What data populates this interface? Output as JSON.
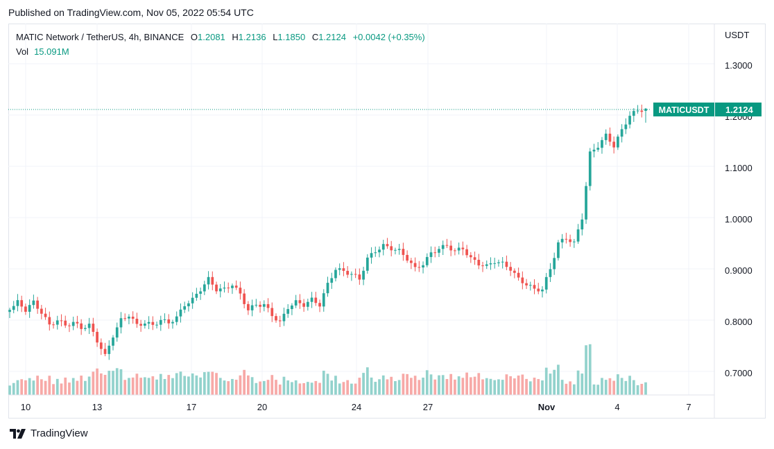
{
  "header": {
    "published": "Published on TradingView.com, Nov 05, 2022 05:54 UTC"
  },
  "legend": {
    "symbol": "MATIC Network / TetherUS, 4h, BINANCE",
    "o_label": "O",
    "o": "1.2081",
    "h_label": "H",
    "h": "1.2136",
    "l_label": "L",
    "l": "1.1850",
    "c_label": "C",
    "c": "1.2124",
    "change": "+0.0042 (+0.35%)",
    "vol_label": "Vol",
    "vol": "15.091M"
  },
  "price_scale": {
    "currency": "USDT",
    "ticks": [
      "1.3000",
      "1.2000",
      "1.1000",
      "1.0000",
      "0.9000",
      "0.8000",
      "0.7000"
    ]
  },
  "last_price": {
    "symbol": "MATICUSDT",
    "value": "1.2124"
  },
  "time_axis": {
    "ticks": [
      "10",
      "13",
      "17",
      "20",
      "24",
      "27",
      "Nov",
      "4",
      "7"
    ]
  },
  "footer": {
    "logo_text": "TradingView"
  },
  "colors": {
    "up": "#26a69a",
    "down": "#ef5350",
    "up_vol": "#92d2cc",
    "down_vol": "#f7a9a7",
    "grid": "#f0f3fa"
  },
  "chart_data": {
    "type": "candlestick",
    "timeframe": "4h",
    "ylim": [
      0.655,
      1.33
    ],
    "grid": true,
    "x_ticks": [
      "10",
      "13",
      "17",
      "20",
      "24",
      "27",
      "Nov",
      "4",
      "7"
    ],
    "path": [
      0.82,
      0.835,
      0.82,
      0.835,
      0.815,
      0.79,
      0.8,
      0.79,
      0.795,
      0.785,
      0.79,
      0.76,
      0.73,
      0.77,
      0.8,
      0.81,
      0.79,
      0.795,
      0.79,
      0.8,
      0.795,
      0.805,
      0.83,
      0.84,
      0.86,
      0.88,
      0.86,
      0.86,
      0.87,
      0.85,
      0.82,
      0.83,
      0.83,
      0.81,
      0.795,
      0.825,
      0.835,
      0.83,
      0.84,
      0.83,
      0.87,
      0.9,
      0.895,
      0.89,
      0.88,
      0.92,
      0.935,
      0.945,
      0.94,
      0.935,
      0.92,
      0.9,
      0.91,
      0.93,
      0.94,
      0.945,
      0.935,
      0.94,
      0.92,
      0.91,
      0.905,
      0.915,
      0.91,
      0.9,
      0.88,
      0.87,
      0.86,
      0.86,
      0.9,
      0.95,
      0.96,
      0.95,
      1.0,
      1.125,
      1.14,
      1.16,
      1.14,
      1.17,
      1.2,
      1.2081,
      1.2124
    ],
    "volume_unit": "M",
    "last_volume": 15.091,
    "last_candle": {
      "o": 1.2081,
      "h": 1.2136,
      "l": 1.185,
      "c": 1.2124
    }
  }
}
